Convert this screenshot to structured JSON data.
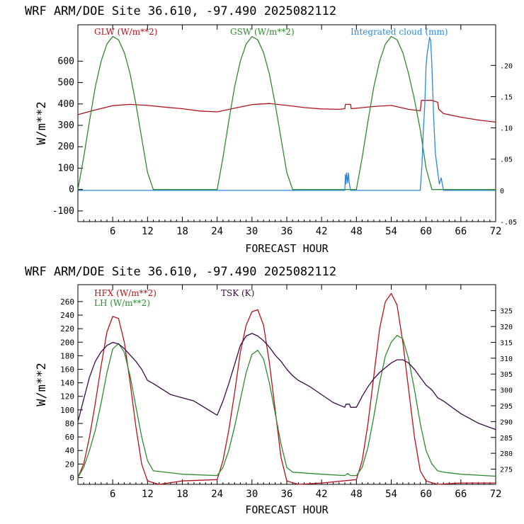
{
  "colors": {
    "red": "#b0141e",
    "green": "#2f8a2f",
    "blue": "#2a8ad8",
    "purple": "#3b0a45",
    "axis": "#000000"
  },
  "chart_data": [
    {
      "type": "line",
      "title": "WRF  ARM/DOE Site  36.610, -97.490  2025082112",
      "xlabel": "FORECAST HOUR",
      "ylabel": "W/m**2",
      "xlim": [
        0,
        72
      ],
      "ylim": [
        -150,
        770
      ],
      "xticks": [
        6,
        12,
        18,
        24,
        30,
        36,
        42,
        48,
        54,
        60,
        66,
        72
      ],
      "yticks": [
        -100,
        0,
        100,
        200,
        300,
        400,
        500,
        600
      ],
      "y2lim": [
        -0.05,
        0.265
      ],
      "y2ticks": [
        {
          "v": 0.2,
          "label": ".20"
        },
        {
          "v": 0.15,
          "label": ".15"
        },
        {
          "v": 0.1,
          "label": ".10"
        },
        {
          "v": 0.05,
          "label": ".05"
        },
        {
          "v": 0.0,
          "label": "0"
        },
        {
          "v": -0.05,
          "label": "-.05"
        }
      ],
      "series": [
        {
          "name": "GLW (W/m**2)",
          "axis": "left",
          "color": "#b0141e",
          "x": [
            0,
            3,
            6,
            9,
            12,
            15,
            18,
            21,
            24,
            27,
            30,
            33,
            36,
            39,
            42,
            45,
            46,
            46.1,
            47,
            47.1,
            48,
            51,
            54,
            57,
            59,
            59.2,
            61,
            62,
            62.2,
            63,
            66,
            69,
            72
          ],
          "y": [
            350,
            372,
            392,
            398,
            393,
            385,
            378,
            367,
            363,
            380,
            397,
            402,
            393,
            383,
            377,
            375,
            378,
            398,
            398,
            378,
            380,
            388,
            393,
            375,
            368,
            417,
            417,
            408,
            375,
            355,
            338,
            325,
            315
          ]
        },
        {
          "name": "GSW (W/m**2)",
          "axis": "left",
          "color": "#2f8a2f",
          "x": [
            0,
            1,
            2,
            3,
            4,
            5,
            6,
            7,
            8,
            9,
            10,
            11,
            12,
            13,
            24,
            25,
            26,
            27,
            28,
            29,
            30,
            31,
            32,
            33,
            34,
            35,
            36,
            37,
            48,
            49,
            50,
            51,
            52,
            53,
            54,
            55,
            56,
            57,
            58,
            59,
            60,
            61,
            72
          ],
          "y": [
            0,
            150,
            320,
            480,
            600,
            680,
            715,
            700,
            640,
            540,
            400,
            240,
            80,
            0,
            0,
            150,
            320,
            480,
            600,
            680,
            715,
            700,
            640,
            540,
            400,
            240,
            80,
            0,
            0,
            150,
            320,
            480,
            600,
            680,
            715,
            700,
            640,
            540,
            420,
            280,
            100,
            0,
            0
          ]
        },
        {
          "name": "Integrated cloud (mm)",
          "axis": "right",
          "color": "#2a8ad8",
          "x": [
            0,
            46,
            46.1,
            46.2,
            46.3,
            46.5,
            46.6,
            46.8,
            47,
            59,
            59.3,
            59.5,
            59.8,
            60,
            60.2,
            60.4,
            60.6,
            60.8,
            61,
            61.3,
            61.6,
            62,
            62.3,
            62.6,
            63,
            72
          ],
          "y": [
            0,
            0,
            0.025,
            0.01,
            0.028,
            0.012,
            0.028,
            0.01,
            0,
            0,
            0.04,
            0.09,
            0.14,
            0.2,
            0.22,
            0.23,
            0.245,
            0.24,
            0.2,
            0.12,
            0.06,
            0.03,
            0.01,
            0.02,
            0,
            0
          ]
        }
      ]
    },
    {
      "type": "line",
      "title": "WRF  ARM/DOE Site  36.610, -97.490  2025082112",
      "xlabel": "FORECAST HOUR",
      "ylabel": "W/m**2",
      "xlim": [
        0,
        72
      ],
      "ylim": [
        -10,
        285
      ],
      "xticks": [
        6,
        12,
        18,
        24,
        30,
        36,
        42,
        48,
        54,
        60,
        66,
        72
      ],
      "yticks": [
        0,
        20,
        40,
        60,
        80,
        100,
        120,
        140,
        160,
        180,
        200,
        220,
        240,
        260
      ],
      "y2lim": [
        270.2,
        333.2
      ],
      "y2ticks": [
        {
          "v": 275,
          "label": "275"
        },
        {
          "v": 280,
          "label": "280"
        },
        {
          "v": 285,
          "label": "285"
        },
        {
          "v": 290,
          "label": "290"
        },
        {
          "v": 295,
          "label": "295"
        },
        {
          "v": 300,
          "label": "300"
        },
        {
          "v": 305,
          "label": "305"
        },
        {
          "v": 310,
          "label": "310"
        },
        {
          "v": 315,
          "label": "315"
        },
        {
          "v": 320,
          "label": "320"
        },
        {
          "v": 325,
          "label": "325"
        }
      ],
      "series": [
        {
          "name": "HFX (W/m**2)",
          "axis": "left",
          "color": "#b0141e",
          "x": [
            0,
            1,
            2,
            3,
            4,
            5,
            6,
            7,
            8,
            9,
            10,
            11,
            12,
            14,
            18,
            24,
            25,
            26,
            27,
            28,
            29,
            30,
            31,
            32,
            33,
            34,
            35,
            36,
            38,
            42,
            48,
            49,
            50,
            51,
            52,
            53,
            54,
            55,
            56,
            57,
            58,
            59,
            60,
            62,
            66,
            72
          ],
          "y": [
            0,
            20,
            60,
            110,
            165,
            215,
            238,
            235,
            200,
            140,
            75,
            20,
            -5,
            -10,
            -5,
            -3,
            25,
            70,
            125,
            185,
            225,
            245,
            248,
            225,
            170,
            100,
            30,
            -5,
            -10,
            -8,
            -3,
            25,
            80,
            150,
            220,
            260,
            272,
            255,
            200,
            130,
            60,
            10,
            -5,
            -10,
            -8,
            -8
          ]
        },
        {
          "name": "LH (W/m**2)",
          "axis": "left",
          "color": "#2f8a2f",
          "x": [
            0,
            1,
            2,
            3,
            4,
            5,
            6,
            7,
            8,
            9,
            10,
            11,
            12,
            13,
            18,
            24,
            25,
            26,
            27,
            28,
            29,
            30,
            31,
            32,
            33,
            34,
            35,
            36,
            37,
            42,
            46,
            46.5,
            47,
            48,
            49,
            50,
            51,
            52,
            53,
            54,
            55,
            56,
            57,
            58,
            59,
            60,
            61,
            62,
            63,
            66,
            72
          ],
          "y": [
            0,
            15,
            40,
            70,
            110,
            155,
            190,
            198,
            185,
            150,
            105,
            60,
            25,
            10,
            5,
            3,
            15,
            40,
            75,
            115,
            155,
            182,
            188,
            175,
            140,
            95,
            50,
            15,
            8,
            5,
            3,
            6,
            3,
            3,
            15,
            45,
            90,
            140,
            180,
            200,
            210,
            205,
            175,
            130,
            80,
            40,
            20,
            10,
            8,
            5,
            2
          ]
        },
        {
          "name": "TSK (K)",
          "axis": "right",
          "color": "#3b0a45",
          "x": [
            0,
            1,
            2,
            3,
            4,
            5,
            6,
            7,
            8,
            9,
            10,
            11,
            12,
            13,
            16,
            20,
            24,
            25,
            26,
            27,
            28,
            29,
            30,
            31,
            32,
            33,
            34,
            35,
            36,
            37,
            38,
            40,
            44,
            46,
            46.2,
            46.8,
            47,
            48,
            49,
            50,
            51,
            52,
            53,
            54,
            55,
            56,
            57,
            58,
            59,
            60,
            61,
            62,
            63,
            66,
            69,
            72
          ],
          "y": [
            290,
            297,
            304,
            309,
            312,
            314,
            315,
            314.5,
            313,
            311,
            309,
            306.5,
            303,
            302,
            298.5,
            296.5,
            292,
            296.5,
            302,
            308,
            314,
            317,
            317.8,
            317,
            315.5,
            313.5,
            311,
            309,
            306.5,
            304.5,
            303,
            301,
            296,
            294.5,
            295.5,
            295.5,
            294.5,
            294.5,
            298,
            301,
            303.5,
            305.5,
            307,
            308.5,
            309.5,
            309.5,
            308.5,
            306.5,
            304,
            301.5,
            300,
            297.5,
            296.5,
            292.5,
            289.5,
            287.5
          ]
        }
      ]
    }
  ]
}
